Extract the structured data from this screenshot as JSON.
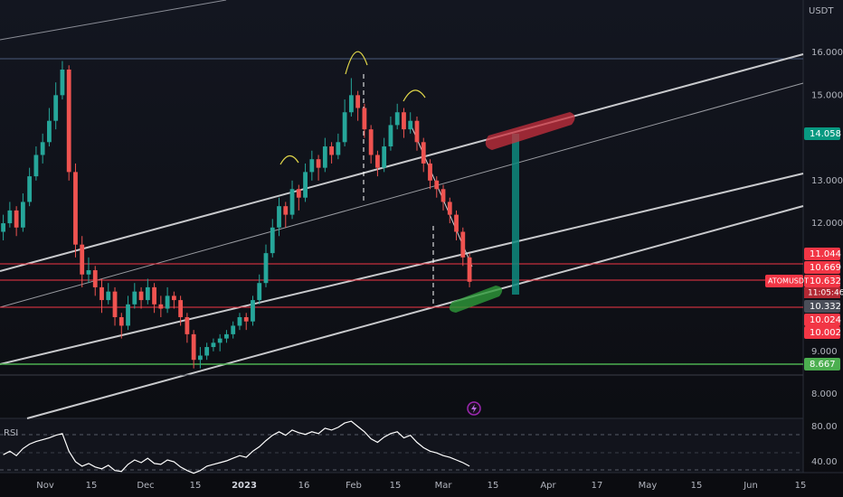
{
  "chart_data": {
    "type": "candlestick",
    "symbol": "ATOMUSDT",
    "currency": "USDT",
    "countdown": "11:05:46",
    "ylim": [
      7.45,
      17.23
    ],
    "yticks": [
      {
        "value": 16,
        "label": "16.000"
      },
      {
        "value": 15,
        "label": "15.000"
      },
      {
        "value": 13,
        "label": "13.000"
      },
      {
        "value": 12,
        "label": "12.000"
      },
      {
        "value": 9,
        "label": "9.000"
      },
      {
        "value": 8,
        "label": "8.000"
      }
    ],
    "up_color": "#26a69a",
    "down_color": "#ef5350",
    "candles": [
      [
        11.8,
        12.2,
        11.6,
        12.0
      ],
      [
        12.0,
        12.5,
        11.9,
        12.3
      ],
      [
        12.3,
        12.4,
        11.7,
        11.9
      ],
      [
        11.9,
        12.7,
        11.8,
        12.5
      ],
      [
        12.5,
        13.3,
        12.4,
        13.1
      ],
      [
        13.1,
        13.8,
        13.0,
        13.6
      ],
      [
        13.6,
        14.1,
        13.4,
        13.9
      ],
      [
        13.9,
        14.7,
        13.8,
        14.4
      ],
      [
        14.4,
        15.3,
        14.2,
        15.0
      ],
      [
        15.0,
        15.8,
        14.9,
        15.6
      ],
      [
        15.6,
        15.7,
        13.0,
        13.2
      ],
      [
        13.2,
        13.4,
        11.2,
        11.5
      ],
      [
        11.5,
        11.7,
        10.5,
        10.8
      ],
      [
        10.8,
        11.2,
        10.6,
        10.9
      ],
      [
        10.9,
        11.0,
        10.3,
        10.5
      ],
      [
        10.5,
        10.7,
        9.9,
        10.2
      ],
      [
        10.2,
        10.6,
        10.1,
        10.4
      ],
      [
        10.4,
        10.5,
        9.6,
        9.8
      ],
      [
        9.8,
        9.9,
        9.3,
        9.6
      ],
      [
        9.6,
        10.3,
        9.5,
        10.1
      ],
      [
        10.1,
        10.6,
        10.0,
        10.4
      ],
      [
        10.4,
        10.5,
        10.0,
        10.2
      ],
      [
        10.2,
        10.7,
        10.1,
        10.5
      ],
      [
        10.5,
        10.6,
        9.9,
        10.1
      ],
      [
        10.1,
        10.3,
        9.8,
        10.0
      ],
      [
        10.0,
        10.5,
        9.9,
        10.3
      ],
      [
        10.3,
        10.4,
        10.0,
        10.2
      ],
      [
        10.2,
        10.3,
        9.6,
        9.8
      ],
      [
        9.8,
        9.9,
        9.2,
        9.4
      ],
      [
        9.4,
        9.5,
        8.6,
        8.8
      ],
      [
        8.8,
        9.1,
        8.6,
        8.9
      ],
      [
        8.9,
        9.2,
        8.8,
        9.1
      ],
      [
        9.1,
        9.3,
        9.0,
        9.2
      ],
      [
        9.2,
        9.4,
        9.0,
        9.3
      ],
      [
        9.3,
        9.5,
        9.2,
        9.4
      ],
      [
        9.4,
        9.7,
        9.3,
        9.6
      ],
      [
        9.6,
        9.9,
        9.5,
        9.8
      ],
      [
        9.8,
        9.9,
        9.5,
        9.7
      ],
      [
        9.7,
        10.3,
        9.6,
        10.2
      ],
      [
        10.2,
        10.8,
        10.1,
        10.6
      ],
      [
        10.6,
        11.5,
        10.5,
        11.3
      ],
      [
        11.3,
        12.1,
        11.2,
        11.9
      ],
      [
        11.9,
        12.6,
        11.7,
        12.4
      ],
      [
        12.4,
        12.5,
        11.9,
        12.2
      ],
      [
        12.2,
        13.0,
        12.1,
        12.8
      ],
      [
        12.8,
        12.9,
        12.3,
        12.6
      ],
      [
        12.6,
        13.4,
        12.5,
        13.2
      ],
      [
        13.2,
        13.7,
        13.0,
        13.5
      ],
      [
        13.5,
        13.6,
        13.0,
        13.3
      ],
      [
        13.3,
        14.0,
        13.2,
        13.8
      ],
      [
        13.8,
        13.9,
        13.4,
        13.6
      ],
      [
        13.6,
        14.1,
        13.5,
        13.9
      ],
      [
        13.9,
        14.9,
        13.8,
        14.6
      ],
      [
        14.6,
        15.4,
        14.5,
        15.0
      ],
      [
        15.0,
        15.1,
        14.4,
        14.7
      ],
      [
        14.7,
        14.8,
        14.0,
        14.2
      ],
      [
        14.2,
        14.3,
        13.4,
        13.6
      ],
      [
        13.6,
        13.7,
        13.1,
        13.3
      ],
      [
        13.3,
        14.0,
        13.2,
        13.8
      ],
      [
        13.8,
        14.5,
        13.7,
        14.3
      ],
      [
        14.3,
        14.8,
        14.2,
        14.6
      ],
      [
        14.6,
        14.7,
        14.0,
        14.2
      ],
      [
        14.2,
        14.6,
        14.1,
        14.4
      ],
      [
        14.4,
        14.5,
        13.7,
        13.9
      ],
      [
        13.9,
        14.0,
        13.2,
        13.4
      ],
      [
        13.4,
        13.5,
        12.8,
        13.0
      ],
      [
        13.0,
        13.1,
        12.6,
        12.8
      ],
      [
        12.8,
        12.9,
        12.3,
        12.5
      ],
      [
        12.5,
        12.6,
        12.0,
        12.2
      ],
      [
        12.2,
        12.3,
        11.6,
        11.8
      ],
      [
        11.8,
        11.9,
        11.0,
        11.2
      ],
      [
        11.2,
        11.3,
        10.5,
        10.63
      ]
    ],
    "price_labels": [
      {
        "value": 14.058,
        "label": "14.058",
        "color": "#089981"
      },
      {
        "value": 11.044,
        "label": "11.044",
        "color": "#f23645"
      },
      {
        "value": 10.669,
        "label": "10.669",
        "color": "#f23645"
      },
      {
        "value": 10.632,
        "label": "10.632",
        "color": "#f23645"
      },
      {
        "value": 10.332,
        "label": "10.332",
        "color": "#4a4e59"
      },
      {
        "value": 10.024,
        "label": "10.024",
        "color": "#f23645"
      },
      {
        "value": 10.002,
        "label": "10.002",
        "color": "#f23645"
      },
      {
        "value": 8.667,
        "label": "8.667",
        "color": "#4caf50"
      }
    ],
    "x_labels": [
      "Nov",
      "15",
      "Dec",
      "15",
      "2023",
      "16",
      "Feb",
      "15",
      "Mar",
      "15",
      "Apr",
      "17",
      "May",
      "15",
      "Jun",
      "15"
    ],
    "rsi": {
      "name": "RSI",
      "color": "#ffffff",
      "ylim": [
        28.7,
        89.2
      ],
      "yticks": [
        {
          "value": 80,
          "label": "80.00"
        },
        {
          "value": 40,
          "label": "40.00"
        }
      ],
      "values": [
        48,
        52,
        47,
        55,
        60,
        63,
        65,
        67,
        70,
        72,
        52,
        40,
        35,
        38,
        34,
        32,
        36,
        30,
        29,
        37,
        42,
        39,
        44,
        38,
        37,
        42,
        40,
        34,
        30,
        27,
        30,
        35,
        37,
        39,
        41,
        44,
        47,
        45,
        52,
        57,
        64,
        70,
        74,
        70,
        76,
        73,
        71,
        74,
        72,
        78,
        76,
        79,
        84,
        86,
        80,
        74,
        66,
        62,
        68,
        72,
        74,
        67,
        70,
        62,
        56,
        52,
        50,
        47,
        45,
        42,
        39,
        35
      ]
    }
  }
}
